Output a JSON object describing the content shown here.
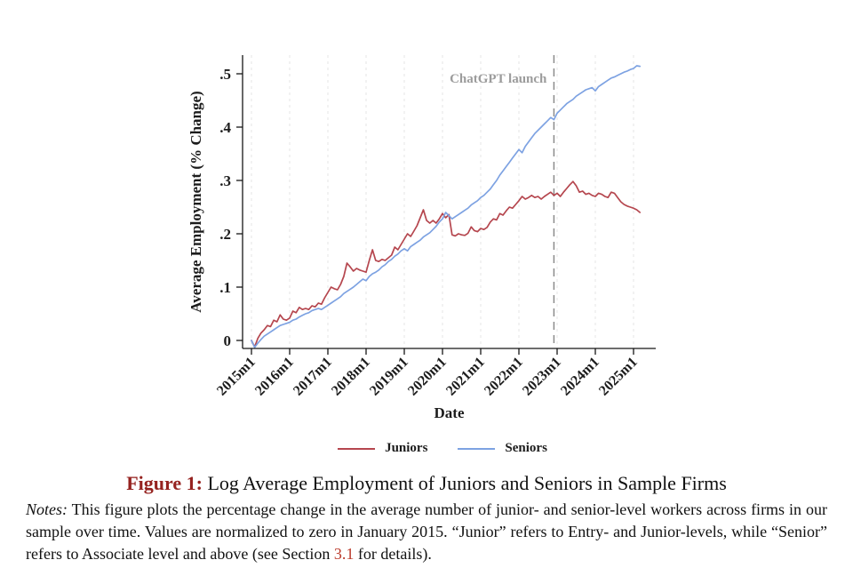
{
  "figure": {
    "caption_label": "Figure 1:",
    "caption_text": "Log Average Employment of Juniors and Seniors in Sample Firms",
    "notes_label": "Notes:",
    "notes_body": "This figure plots the percentage change in the average number of junior- and senior-level workers across firms in our sample over time.  Values are normalized to zero in January 2015.  “Junior” refers to Entry- and Junior-levels, while “Senior” refers to Associate level and above (see Section",
    "notes_link": "3.1",
    "notes_tail": "for details)."
  },
  "chart_data": {
    "type": "line",
    "title": "",
    "xlabel": "Date",
    "ylabel": "Average Employment (% Change)",
    "x_start": "2015m1",
    "x_frequency": "monthly",
    "x_tick_labels": [
      "2015m1",
      "2016m1",
      "2017m1",
      "2018m1",
      "2019m1",
      "2020m1",
      "2021m1",
      "2022m1",
      "2023m1",
      "2024m1",
      "2025m1"
    ],
    "y_ticks": [
      {
        "value": 0.0,
        "label": "0"
      },
      {
        "value": 0.1,
        "label": ".1"
      },
      {
        "value": 0.2,
        "label": ".2"
      },
      {
        "value": 0.3,
        "label": ".3"
      },
      {
        "value": 0.4,
        "label": ".4"
      },
      {
        "value": 0.5,
        "label": ".5"
      }
    ],
    "ylim": [
      -0.015,
      0.535
    ],
    "grid": "vertical-dashed-per-year",
    "legend_position": "bottom",
    "annotation": {
      "label": "ChatGPT launch",
      "month_index": 95
    },
    "colors": {
      "juniors": "#b5464e",
      "seniors": "#7da2e2",
      "grid": "#e4e4e4",
      "annotation_line": "#8a8a8a",
      "annotation_text": "#9c9c9c",
      "figure_label": "#95221f",
      "section_link": "#bb3a2b"
    },
    "series": [
      {
        "name": "Juniors",
        "color": "#b5464e",
        "values": [
          0.0,
          -0.012,
          0.004,
          0.014,
          0.02,
          0.028,
          0.026,
          0.038,
          0.035,
          0.048,
          0.04,
          0.038,
          0.042,
          0.055,
          0.052,
          0.062,
          0.058,
          0.06,
          0.058,
          0.065,
          0.063,
          0.07,
          0.068,
          0.08,
          0.09,
          0.1,
          0.097,
          0.095,
          0.105,
          0.12,
          0.145,
          0.138,
          0.13,
          0.135,
          0.132,
          0.13,
          0.128,
          0.15,
          0.17,
          0.15,
          0.148,
          0.152,
          0.15,
          0.155,
          0.16,
          0.175,
          0.17,
          0.18,
          0.19,
          0.2,
          0.195,
          0.205,
          0.215,
          0.23,
          0.245,
          0.225,
          0.22,
          0.225,
          0.22,
          0.228,
          0.238,
          0.23,
          0.236,
          0.198,
          0.196,
          0.2,
          0.198,
          0.197,
          0.201,
          0.213,
          0.206,
          0.204,
          0.21,
          0.208,
          0.212,
          0.222,
          0.228,
          0.226,
          0.238,
          0.235,
          0.243,
          0.25,
          0.248,
          0.255,
          0.262,
          0.27,
          0.265,
          0.268,
          0.272,
          0.268,
          0.27,
          0.265,
          0.27,
          0.274,
          0.278,
          0.272,
          0.276,
          0.27,
          0.278,
          0.285,
          0.292,
          0.298,
          0.29,
          0.278,
          0.28,
          0.274,
          0.276,
          0.272,
          0.27,
          0.276,
          0.274,
          0.27,
          0.268,
          0.278,
          0.276,
          0.268,
          0.26,
          0.255,
          0.252,
          0.25,
          0.248,
          0.245,
          0.24
        ]
      },
      {
        "name": "Seniors",
        "color": "#7da2e2",
        "values": [
          0.0,
          -0.013,
          -0.005,
          0.002,
          0.008,
          0.012,
          0.016,
          0.02,
          0.024,
          0.028,
          0.03,
          0.032,
          0.034,
          0.038,
          0.04,
          0.044,
          0.047,
          0.05,
          0.052,
          0.056,
          0.058,
          0.06,
          0.058,
          0.062,
          0.066,
          0.07,
          0.074,
          0.078,
          0.082,
          0.088,
          0.092,
          0.096,
          0.1,
          0.105,
          0.11,
          0.115,
          0.112,
          0.12,
          0.125,
          0.128,
          0.132,
          0.138,
          0.142,
          0.148,
          0.152,
          0.158,
          0.162,
          0.168,
          0.172,
          0.168,
          0.176,
          0.18,
          0.184,
          0.188,
          0.194,
          0.198,
          0.202,
          0.208,
          0.214,
          0.222,
          0.228,
          0.24,
          0.234,
          0.228,
          0.232,
          0.236,
          0.24,
          0.244,
          0.248,
          0.254,
          0.258,
          0.262,
          0.268,
          0.272,
          0.278,
          0.284,
          0.292,
          0.3,
          0.31,
          0.318,
          0.326,
          0.334,
          0.342,
          0.35,
          0.358,
          0.352,
          0.364,
          0.372,
          0.38,
          0.388,
          0.394,
          0.4,
          0.406,
          0.412,
          0.418,
          0.414,
          0.426,
          0.432,
          0.438,
          0.444,
          0.448,
          0.452,
          0.458,
          0.462,
          0.466,
          0.47,
          0.472,
          0.474,
          0.468,
          0.476,
          0.48,
          0.484,
          0.488,
          0.492,
          0.494,
          0.497,
          0.5,
          0.503,
          0.505,
          0.508,
          0.51,
          0.515,
          0.514
        ]
      }
    ]
  }
}
